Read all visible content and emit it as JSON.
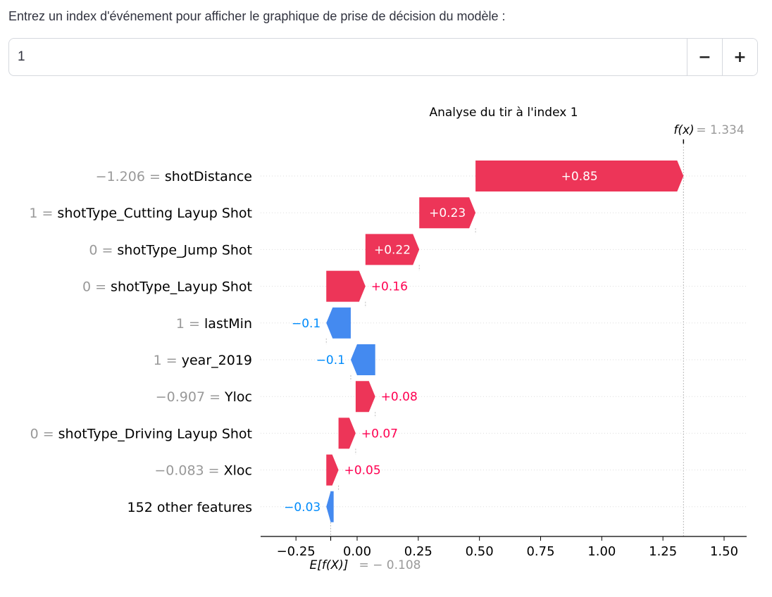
{
  "prompt": "Entrez un index d'événement pour afficher le graphique de prise de décision du modèle :",
  "number_input": {
    "value": "1",
    "minus_label": "−",
    "plus_label": "+"
  },
  "colors": {
    "positive": "#ff0051",
    "negative": "#008bfb",
    "positive_bar": "#ed3558",
    "negative_bar": "#448af0"
  },
  "chart_data": {
    "type": "waterfall",
    "title": "Analyse du tir à l'index 1",
    "fx_label": "f(x)",
    "fx_value_text": "= 1.334",
    "fx_value": 1.334,
    "ex_label": "E[f(X)]",
    "ex_value_text": "= − 0.108",
    "base_value": -0.108,
    "xlim": [
      -0.4,
      1.6
    ],
    "xticks": [
      -0.25,
      0.0,
      0.25,
      0.5,
      0.75,
      1.0,
      1.25,
      1.5
    ],
    "xtick_labels": [
      "−0.25",
      "0.00",
      "0.25",
      "0.50",
      "0.75",
      "1.00",
      "1.25",
      "1.50"
    ],
    "features": [
      {
        "value_text": "−1.206 =",
        "name": "shotDistance",
        "contribution": 0.85,
        "label": "+0.85",
        "start": 0.484
      },
      {
        "value_text": "1 =",
        "name": "shotType_Cutting Layup Shot",
        "contribution": 0.23,
        "label": "+0.23",
        "start": 0.254
      },
      {
        "value_text": "0 =",
        "name": "shotType_Jump Shot",
        "contribution": 0.22,
        "label": "+0.22",
        "start": 0.034
      },
      {
        "value_text": "0 =",
        "name": "shotType_Layup Shot",
        "contribution": 0.16,
        "label": "+0.16",
        "start": -0.126
      },
      {
        "value_text": "1 =",
        "name": "lastMin",
        "contribution": -0.1,
        "label": "−0.1",
        "start": -0.026
      },
      {
        "value_text": "1 =",
        "name": "year_2019",
        "contribution": -0.1,
        "label": "−0.1",
        "start": 0.074
      },
      {
        "value_text": "−0.907 =",
        "name": "Yloc",
        "contribution": 0.08,
        "label": "+0.08",
        "start": -0.006
      },
      {
        "value_text": "0 =",
        "name": "shotType_Driving Layup Shot",
        "contribution": 0.07,
        "label": "+0.07",
        "start": -0.076
      },
      {
        "value_text": "−0.083 =",
        "name": "Xloc",
        "contribution": 0.05,
        "label": "+0.05",
        "start": -0.126
      },
      {
        "value_text": "",
        "name": "152 other features",
        "contribution": -0.03,
        "label": "−0.03",
        "start": -0.096
      }
    ]
  }
}
